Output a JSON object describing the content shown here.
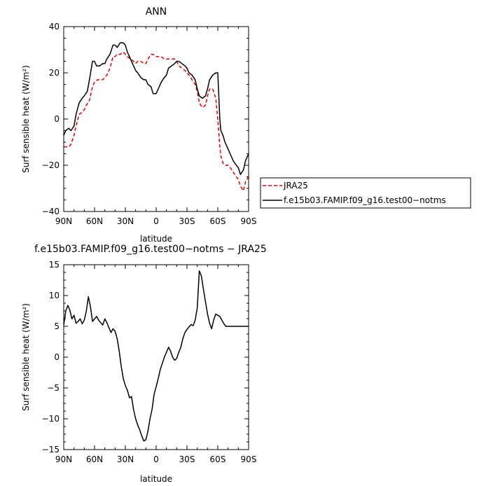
{
  "chart_data": [
    {
      "type": "line",
      "title": "ANN",
      "xlabel": "latitude",
      "ylabel": "Surf sensible heat (W/m²)",
      "xlim": [
        90,
        -90
      ],
      "ylim": [
        -40,
        40
      ],
      "xticks": [
        90,
        60,
        30,
        0,
        -30,
        -60,
        -90
      ],
      "xtick_labels": [
        "90N",
        "60N",
        "30N",
        "0",
        "30S",
        "60S",
        "90S"
      ],
      "yticks": [
        -40,
        -20,
        0,
        20,
        40
      ],
      "ytick_labels": [
        "−40",
        "−20",
        "0",
        "20",
        "40"
      ],
      "legend": {
        "placement": "outside-right",
        "entries": [
          "JRA25",
          "f.e15b03.FAMIP.f09_g16.test00−notms"
        ]
      },
      "series": [
        {
          "name": "JRA25",
          "color": "#e00000",
          "dash": "dashed",
          "x": [
            90,
            87,
            85,
            83,
            80,
            78,
            75,
            72,
            70,
            68,
            65,
            62,
            60,
            57,
            55,
            52,
            50,
            48,
            45,
            42,
            40,
            38,
            35,
            32,
            30,
            28,
            25,
            22,
            20,
            18,
            15,
            12,
            10,
            8,
            5,
            3,
            0,
            -3,
            -5,
            -8,
            -10,
            -12,
            -15,
            -18,
            -20,
            -22,
            -25,
            -28,
            -30,
            -32,
            -35,
            -38,
            -40,
            -42,
            -45,
            -48,
            -50,
            -52,
            -55,
            -58,
            -60,
            -62,
            -63,
            -65,
            -67,
            -70,
            -72,
            -75,
            -78,
            -80,
            -82,
            -85,
            -87,
            -90
          ],
          "y": [
            -12,
            -12,
            -12,
            -11,
            -7,
            -3,
            2,
            3,
            4,
            6,
            8,
            14,
            16,
            17,
            17,
            17,
            18,
            19,
            22,
            27,
            27,
            28,
            28,
            29,
            28,
            27,
            26,
            25,
            24,
            25,
            25,
            24,
            24,
            26,
            28,
            28,
            27,
            27,
            27,
            26,
            26,
            26,
            26,
            26,
            25,
            23,
            22,
            21,
            20,
            19,
            17,
            15,
            12,
            7,
            5,
            6,
            10,
            13,
            13,
            9,
            0,
            -12,
            -16,
            -19,
            -20,
            -20,
            -21,
            -23,
            -25,
            -26,
            -29,
            -31,
            -27,
            -25
          ]
        },
        {
          "name": "f.e15b03.FAMIP.f09_g16.test00−notms",
          "color": "#000000",
          "dash": "solid",
          "x": [
            90,
            88,
            85,
            83,
            80,
            78,
            75,
            72,
            70,
            67,
            65,
            62,
            60,
            58,
            55,
            52,
            50,
            48,
            45,
            42,
            40,
            38,
            35,
            32,
            30,
            28,
            25,
            22,
            20,
            18,
            15,
            12,
            10,
            8,
            5,
            3,
            0,
            -3,
            -5,
            -8,
            -10,
            -12,
            -15,
            -18,
            -20,
            -22,
            -25,
            -28,
            -30,
            -32,
            -35,
            -38,
            -40,
            -42,
            -45,
            -48,
            -50,
            -52,
            -55,
            -58,
            -60,
            -62,
            -63,
            -65,
            -67,
            -70,
            -72,
            -75,
            -78,
            -80,
            -82,
            -85,
            -87,
            -90
          ],
          "y": [
            -7,
            -5,
            -4,
            -5,
            -3,
            2,
            7,
            9,
            10,
            12,
            17,
            25,
            25,
            23,
            23,
            24,
            24,
            26,
            28,
            32,
            32,
            31,
            33,
            33,
            32,
            29,
            26,
            23,
            21,
            20,
            18,
            17,
            17,
            15,
            14,
            11,
            11,
            14,
            16,
            18,
            19,
            22,
            23,
            24,
            25,
            25,
            24,
            23,
            22,
            20,
            19,
            17,
            13,
            10,
            9,
            10,
            13,
            17,
            19,
            20,
            20,
            0,
            -5,
            -7,
            -10,
            -13,
            -15,
            -18,
            -20,
            -21,
            -24,
            -22,
            -18,
            -15
          ]
        }
      ]
    },
    {
      "type": "line",
      "title": "f.e15b03.FAMIP.f09_g16.test00−notms − JRA25",
      "xlabel": "latitude",
      "ylabel": "Surf sensible heat (W/m²)",
      "xlim": [
        90,
        -90
      ],
      "ylim": [
        -15,
        15
      ],
      "xticks": [
        90,
        60,
        30,
        0,
        -30,
        -60,
        -90
      ],
      "xtick_labels": [
        "90N",
        "60N",
        "30N",
        "0",
        "30S",
        "60S",
        "90S"
      ],
      "yticks": [
        -15,
        -10,
        -5,
        0,
        5,
        10,
        15
      ],
      "ytick_labels": [
        "−15",
        "−10",
        "−5",
        "0",
        "5",
        "10",
        "15"
      ],
      "series": [
        {
          "color": "#000000",
          "dash": "solid",
          "x": [
            90,
            88,
            86,
            84,
            82,
            80,
            78,
            76,
            74,
            72,
            70,
            68,
            66,
            64,
            62,
            60,
            58,
            56,
            54,
            52,
            50,
            48,
            46,
            44,
            42,
            40,
            38,
            36,
            34,
            32,
            30,
            28,
            26,
            24,
            22,
            20,
            18,
            16,
            14,
            12,
            10,
            8,
            6,
            4,
            2,
            0,
            -2,
            -4,
            -6,
            -8,
            -10,
            -12,
            -14,
            -16,
            -18,
            -20,
            -22,
            -24,
            -26,
            -28,
            -30,
            -32,
            -34,
            -36,
            -38,
            -40,
            -42,
            -44,
            -46,
            -48,
            -50,
            -52,
            -54,
            -56,
            -58,
            -60,
            -62,
            -64,
            -66,
            -68,
            -70,
            -72,
            -74,
            -76,
            -78,
            -80,
            -82,
            -84,
            -86,
            -88,
            -90
          ],
          "y": [
            5.2,
            7.5,
            8.4,
            7.6,
            6.2,
            6.8,
            5.5,
            5.8,
            6.2,
            5.4,
            6.0,
            7.5,
            9.8,
            8.2,
            5.8,
            6.2,
            6.6,
            6.0,
            5.6,
            5.2,
            6.2,
            5.6,
            4.8,
            4.0,
            4.6,
            4.2,
            3.0,
            1.0,
            -1.5,
            -3.5,
            -4.6,
            -5.4,
            -6.6,
            -6.4,
            -8.5,
            -10.0,
            -11.0,
            -11.8,
            -12.8,
            -13.6,
            -13.4,
            -12.0,
            -10.0,
            -8.5,
            -6.0,
            -4.8,
            -3.5,
            -2.0,
            -1.0,
            0.0,
            0.8,
            1.6,
            1.0,
            0.0,
            -0.5,
            -0.2,
            0.8,
            1.6,
            3.0,
            4.0,
            4.5,
            4.9,
            5.3,
            5.1,
            6.0,
            8.0,
            14.0,
            13.2,
            11.0,
            9.0,
            7.0,
            5.5,
            4.6,
            6.0,
            7.0,
            6.8,
            6.6,
            6.0,
            5.4,
            5.0,
            5.0,
            5.0,
            5.0,
            5.0,
            5.0,
            5.0,
            5.0,
            5.0,
            5.0,
            5.0,
            5.0
          ]
        }
      ]
    }
  ]
}
